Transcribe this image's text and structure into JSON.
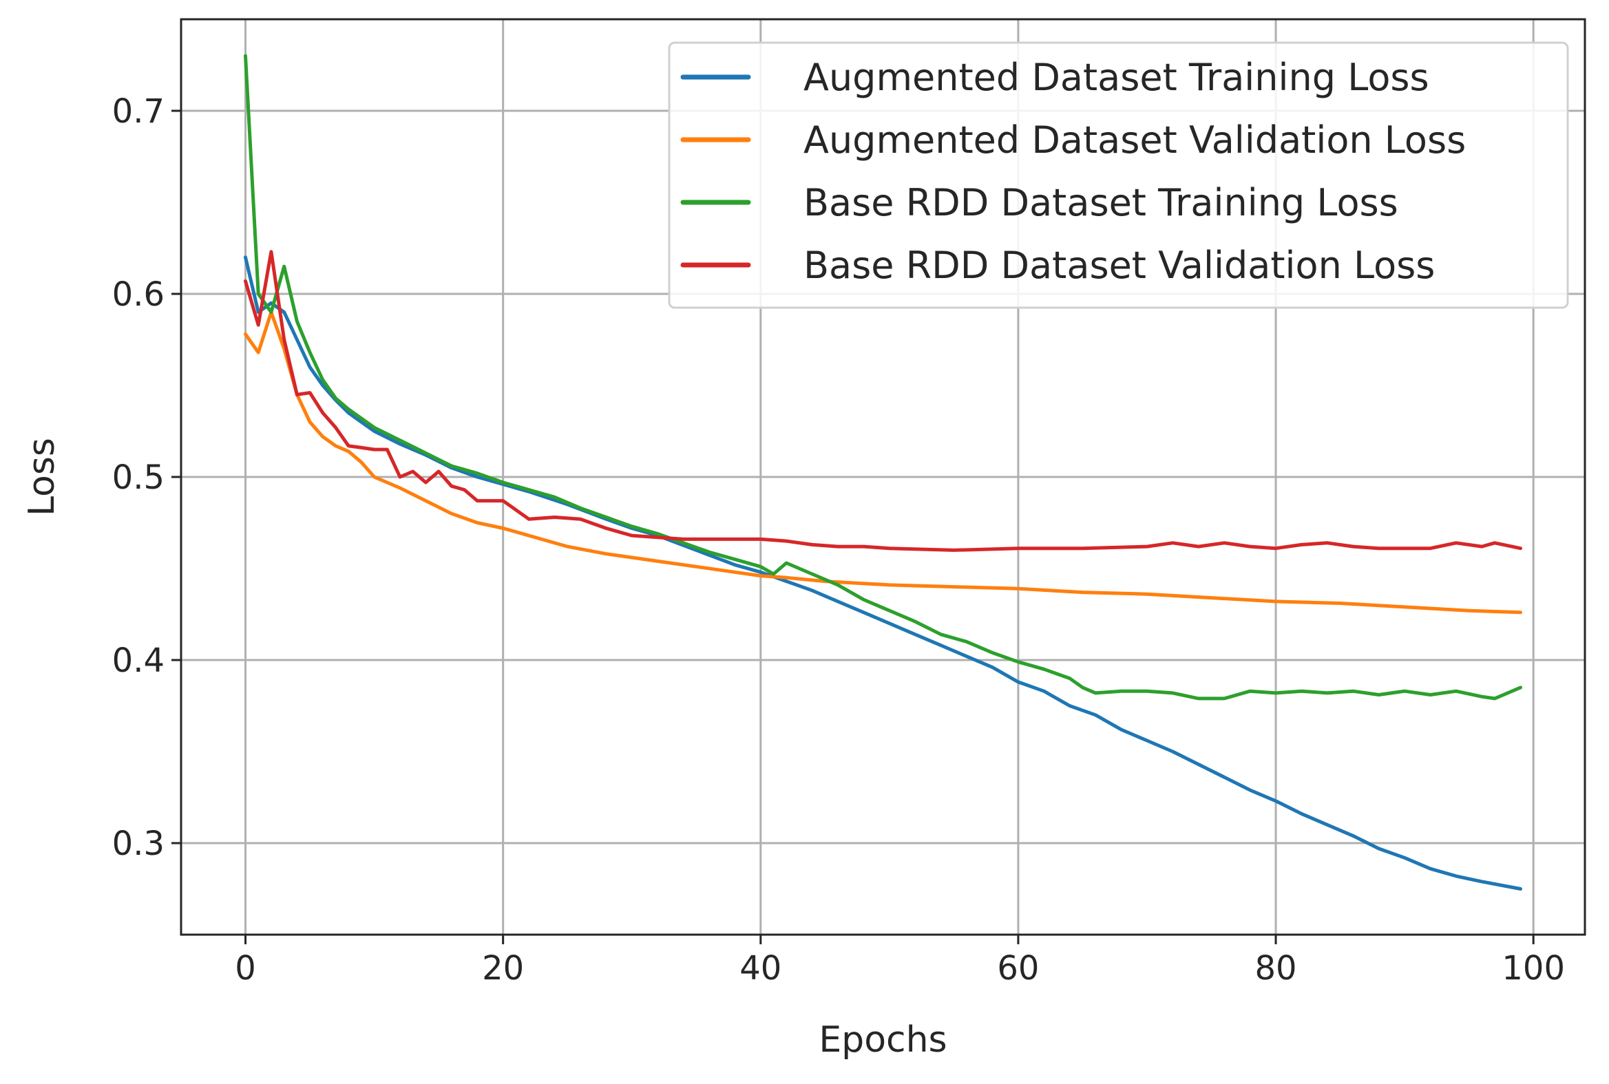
{
  "chart_data": {
    "type": "line",
    "title": "",
    "xlabel": "Epochs",
    "ylabel": "Loss",
    "xlim": [
      -5,
      104
    ],
    "ylim": [
      0.25,
      0.75
    ],
    "grid": true,
    "legend_position": "top-right",
    "xticks": [
      0,
      20,
      40,
      60,
      80,
      100
    ],
    "yticks": [
      0.3,
      0.4,
      0.5,
      0.6,
      0.7
    ],
    "xtick_labels": [
      "0",
      "20",
      "40",
      "60",
      "80",
      "100"
    ],
    "ytick_labels": [
      "0.3",
      "0.4",
      "0.5",
      "0.6",
      "0.7"
    ],
    "series": [
      {
        "name": "Augmented Dataset Training Loss",
        "color": "#1f77b4",
        "x": [
          0,
          1,
          2,
          3,
          4,
          5,
          6,
          7,
          8,
          9,
          10,
          12,
          14,
          16,
          18,
          20,
          22,
          25,
          28,
          30,
          32,
          35,
          38,
          40,
          42,
          44,
          46,
          48,
          50,
          52,
          54,
          56,
          58,
          60,
          62,
          64,
          66,
          68,
          70,
          72,
          74,
          76,
          78,
          80,
          82,
          84,
          86,
          88,
          90,
          92,
          94,
          96,
          99
        ],
        "values": [
          0.62,
          0.59,
          0.595,
          0.59,
          0.575,
          0.56,
          0.55,
          0.542,
          0.535,
          0.53,
          0.525,
          0.518,
          0.512,
          0.505,
          0.5,
          0.496,
          0.492,
          0.485,
          0.477,
          0.472,
          0.468,
          0.46,
          0.452,
          0.448,
          0.443,
          0.438,
          0.432,
          0.426,
          0.42,
          0.414,
          0.408,
          0.402,
          0.396,
          0.388,
          0.383,
          0.375,
          0.37,
          0.362,
          0.356,
          0.35,
          0.343,
          0.336,
          0.329,
          0.323,
          0.316,
          0.31,
          0.304,
          0.297,
          0.292,
          0.286,
          0.282,
          0.279,
          0.275
        ]
      },
      {
        "name": "Augmented Dataset Validation Loss",
        "color": "#ff7f0e",
        "x": [
          0,
          1,
          2,
          3,
          4,
          5,
          6,
          7,
          8,
          9,
          10,
          12,
          14,
          16,
          18,
          20,
          22,
          25,
          28,
          30,
          32,
          35,
          38,
          40,
          42,
          45,
          50,
          55,
          60,
          65,
          70,
          75,
          80,
          85,
          90,
          95,
          99
        ],
        "values": [
          0.578,
          0.568,
          0.59,
          0.57,
          0.545,
          0.53,
          0.522,
          0.517,
          0.514,
          0.508,
          0.5,
          0.494,
          0.487,
          0.48,
          0.475,
          0.472,
          0.468,
          0.462,
          0.458,
          0.456,
          0.454,
          0.451,
          0.448,
          0.446,
          0.445,
          0.443,
          0.441,
          0.44,
          0.439,
          0.437,
          0.436,
          0.434,
          0.432,
          0.431,
          0.429,
          0.427,
          0.426
        ]
      },
      {
        "name": "Base RDD Dataset Training Loss",
        "color": "#2ca02c",
        "x": [
          0,
          1,
          2,
          3,
          4,
          5,
          6,
          7,
          8,
          9,
          10,
          12,
          14,
          16,
          18,
          20,
          22,
          24,
          26,
          28,
          30,
          32,
          34,
          36,
          38,
          40,
          41,
          42,
          44,
          46,
          48,
          50,
          52,
          54,
          56,
          58,
          60,
          62,
          64,
          65,
          66,
          68,
          70,
          72,
          74,
          76,
          78,
          80,
          82,
          84,
          86,
          88,
          90,
          92,
          94,
          96,
          97,
          99
        ],
        "values": [
          0.73,
          0.6,
          0.59,
          0.615,
          0.585,
          0.568,
          0.553,
          0.543,
          0.537,
          0.532,
          0.527,
          0.52,
          0.513,
          0.506,
          0.502,
          0.497,
          0.493,
          0.489,
          0.483,
          0.478,
          0.473,
          0.469,
          0.464,
          0.459,
          0.455,
          0.451,
          0.447,
          0.453,
          0.447,
          0.441,
          0.433,
          0.427,
          0.421,
          0.414,
          0.41,
          0.404,
          0.399,
          0.395,
          0.39,
          0.385,
          0.382,
          0.383,
          0.383,
          0.382,
          0.379,
          0.379,
          0.383,
          0.382,
          0.383,
          0.382,
          0.383,
          0.381,
          0.383,
          0.381,
          0.383,
          0.38,
          0.379,
          0.385
        ]
      },
      {
        "name": "Base RDD Dataset Validation Loss",
        "color": "#d62728",
        "x": [
          0,
          1,
          2,
          3,
          4,
          5,
          6,
          7,
          8,
          9,
          10,
          11,
          12,
          13,
          14,
          15,
          16,
          17,
          18,
          19,
          20,
          22,
          24,
          26,
          28,
          30,
          32,
          34,
          36,
          38,
          40,
          42,
          44,
          46,
          48,
          50,
          55,
          60,
          65,
          70,
          72,
          74,
          76,
          78,
          80,
          82,
          84,
          86,
          88,
          90,
          92,
          94,
          96,
          97,
          99
        ],
        "values": [
          0.607,
          0.583,
          0.623,
          0.575,
          0.545,
          0.546,
          0.535,
          0.527,
          0.517,
          0.516,
          0.515,
          0.515,
          0.5,
          0.503,
          0.497,
          0.503,
          0.495,
          0.493,
          0.487,
          0.487,
          0.487,
          0.477,
          0.478,
          0.477,
          0.472,
          0.468,
          0.467,
          0.466,
          0.466,
          0.466,
          0.466,
          0.465,
          0.463,
          0.462,
          0.462,
          0.461,
          0.46,
          0.461,
          0.461,
          0.462,
          0.464,
          0.462,
          0.464,
          0.462,
          0.461,
          0.463,
          0.464,
          0.462,
          0.461,
          0.461,
          0.461,
          0.464,
          0.462,
          0.464,
          0.461
        ]
      }
    ]
  }
}
